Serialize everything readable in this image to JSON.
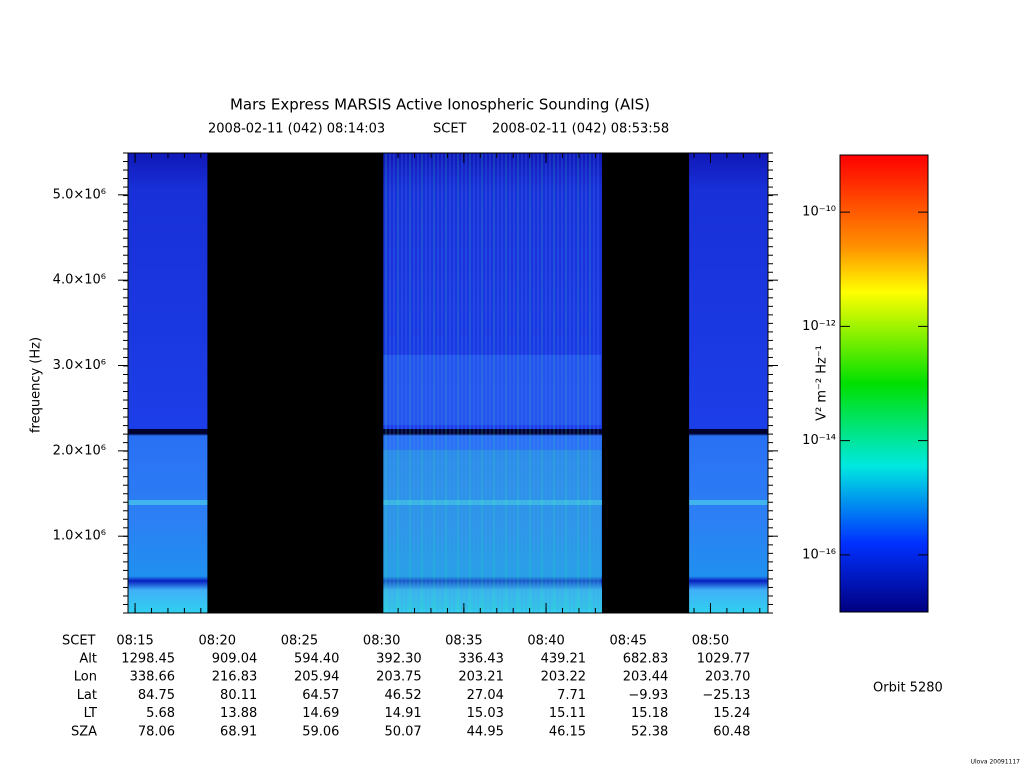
{
  "chart_data": {
    "type": "spectrogram",
    "title": "Mars Express MARSIS Active Ionospheric Sounding (AIS)",
    "time_start": "2008-02-11 (042) 08:14:03",
    "time_system": "SCET",
    "time_end": "2008-02-11 (042) 08:53:58",
    "y_label": "frequency (Hz)",
    "xlim": [
      494.57,
      533.5
    ],
    "xticks": [
      {
        "value": 495,
        "label": "08:15"
      },
      {
        "value": 500,
        "label": "08:20"
      },
      {
        "value": 505,
        "label": "08:25"
      },
      {
        "value": 510,
        "label": "08:30"
      },
      {
        "value": 515,
        "label": "08:35"
      },
      {
        "value": 520,
        "label": "08:40"
      },
      {
        "value": 525,
        "label": "08:45"
      },
      {
        "value": 530,
        "label": "08:50"
      }
    ],
    "ylim": [
      100000,
      5490000
    ],
    "yticks": [
      {
        "value": 1000000,
        "label": "1.0×10⁶"
      },
      {
        "value": 2000000,
        "label": "2.0×10⁶"
      },
      {
        "value": 3000000,
        "label": "3.0×10⁶"
      },
      {
        "value": 4000000,
        "label": "4.0×10⁶"
      },
      {
        "value": 5000000,
        "label": "5.0×10⁶"
      }
    ],
    "data_gaps": [
      {
        "start": 499.4,
        "end": 510.1
      },
      {
        "start": 523.4,
        "end": 528.7
      }
    ],
    "colorbar": {
      "label": "V² m⁻² Hz⁻¹",
      "log": true,
      "lim": [
        1e-17,
        1e-09
      ],
      "ticks": [
        {
          "value": 1e-10,
          "label": "10⁻¹⁰"
        },
        {
          "value": 1e-12,
          "label": "10⁻¹²"
        },
        {
          "value": 1e-14,
          "label": "10⁻¹⁴"
        },
        {
          "value": 1e-16,
          "label": "10⁻¹⁶"
        }
      ]
    },
    "ephemeris": {
      "time_label": "SCET",
      "rows": [
        {
          "label": "Alt",
          "values": [
            "1298.45",
            "909.04",
            "594.40",
            "392.30",
            "336.43",
            "439.21",
            "682.83",
            "1029.77"
          ]
        },
        {
          "label": "Lon",
          "values": [
            "338.66",
            "216.83",
            "205.94",
            "203.75",
            "203.21",
            "203.22",
            "203.44",
            "203.70"
          ]
        },
        {
          "label": "Lat",
          "values": [
            "84.75",
            "80.11",
            "64.57",
            "46.52",
            "27.04",
            "7.71",
            "−9.93",
            "−25.13"
          ]
        },
        {
          "label": "LT",
          "values": [
            "5.68",
            "13.88",
            "14.69",
            "14.91",
            "15.03",
            "15.11",
            "15.18",
            "15.24"
          ]
        },
        {
          "label": "SZA",
          "values": [
            "78.06",
            "68.91",
            "59.06",
            "50.07",
            "44.95",
            "46.15",
            "52.38",
            "60.48"
          ]
        }
      ]
    },
    "orbit": "Orbit 5280",
    "footer": "Ulova 20091117"
  }
}
